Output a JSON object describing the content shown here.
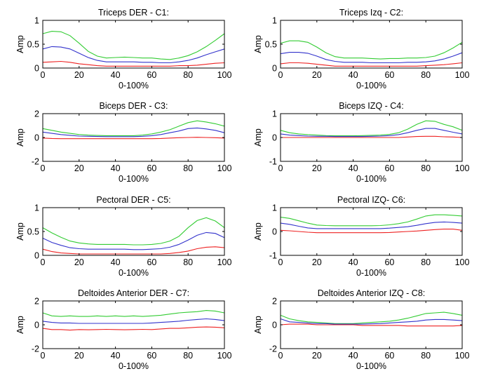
{
  "chart_data": [
    {
      "type": "line",
      "title": "Triceps DER - C1:",
      "xlabel": "0-100%",
      "ylabel": "Amp",
      "xlim": [
        0,
        100
      ],
      "ylim": [
        0,
        1
      ],
      "xticks": [
        "0",
        "20",
        "40",
        "60",
        "80",
        "100"
      ],
      "yticks": [
        "0",
        "0.5",
        "1"
      ],
      "x": [
        0,
        5,
        10,
        15,
        20,
        25,
        30,
        35,
        40,
        45,
        50,
        55,
        60,
        65,
        70,
        75,
        80,
        85,
        90,
        95,
        100
      ],
      "series": [
        {
          "color": "#33cc33",
          "values": [
            0.72,
            0.77,
            0.76,
            0.68,
            0.52,
            0.35,
            0.25,
            0.21,
            0.22,
            0.23,
            0.22,
            0.21,
            0.21,
            0.19,
            0.18,
            0.21,
            0.26,
            0.34,
            0.45,
            0.58,
            0.72
          ]
        },
        {
          "color": "#3333cc",
          "values": [
            0.4,
            0.45,
            0.44,
            0.4,
            0.31,
            0.22,
            0.16,
            0.13,
            0.13,
            0.13,
            0.13,
            0.12,
            0.12,
            0.11,
            0.11,
            0.13,
            0.16,
            0.21,
            0.28,
            0.34,
            0.4
          ]
        },
        {
          "color": "#ee2222",
          "values": [
            0.12,
            0.13,
            0.14,
            0.12,
            0.09,
            0.07,
            0.05,
            0.04,
            0.04,
            0.04,
            0.04,
            0.04,
            0.04,
            0.04,
            0.04,
            0.05,
            0.05,
            0.06,
            0.08,
            0.1,
            0.11
          ]
        }
      ]
    },
    {
      "type": "line",
      "title": "Triceps Izq - C2:",
      "xlabel": "0-100%",
      "ylabel": "Amp",
      "xlim": [
        0,
        100
      ],
      "ylim": [
        0,
        1
      ],
      "xticks": [
        "0",
        "20",
        "40",
        "60",
        "80",
        "100"
      ],
      "yticks": [
        "0",
        "0.5",
        "1"
      ],
      "x": [
        0,
        5,
        10,
        15,
        20,
        25,
        30,
        35,
        40,
        45,
        50,
        55,
        60,
        65,
        70,
        75,
        80,
        85,
        90,
        95,
        100
      ],
      "series": [
        {
          "color": "#33cc33",
          "values": [
            0.52,
            0.57,
            0.57,
            0.54,
            0.44,
            0.32,
            0.24,
            0.21,
            0.21,
            0.21,
            0.2,
            0.19,
            0.2,
            0.2,
            0.21,
            0.21,
            0.22,
            0.25,
            0.32,
            0.42,
            0.54
          ]
        },
        {
          "color": "#3333cc",
          "values": [
            0.3,
            0.33,
            0.33,
            0.31,
            0.25,
            0.18,
            0.14,
            0.12,
            0.12,
            0.12,
            0.11,
            0.11,
            0.11,
            0.11,
            0.12,
            0.12,
            0.13,
            0.15,
            0.19,
            0.25,
            0.32
          ]
        },
        {
          "color": "#ee2222",
          "values": [
            0.09,
            0.11,
            0.11,
            0.1,
            0.08,
            0.06,
            0.04,
            0.04,
            0.04,
            0.04,
            0.04,
            0.04,
            0.04,
            0.04,
            0.04,
            0.04,
            0.05,
            0.06,
            0.07,
            0.09,
            0.11
          ]
        }
      ]
    },
    {
      "type": "line",
      "title": "Biceps DER - C3:",
      "xlabel": "0-100%",
      "ylabel": "Amp",
      "xlim": [
        0,
        100
      ],
      "ylim": [
        -2,
        2
      ],
      "xticks": [
        "0",
        "20",
        "40",
        "60",
        "80",
        "100"
      ],
      "yticks": [
        "-2",
        "0",
        "2"
      ],
      "x": [
        0,
        5,
        10,
        15,
        20,
        25,
        30,
        35,
        40,
        45,
        50,
        55,
        60,
        65,
        70,
        75,
        80,
        85,
        90,
        95,
        100
      ],
      "series": [
        {
          "color": "#33cc33",
          "values": [
            0.75,
            0.6,
            0.45,
            0.35,
            0.25,
            0.2,
            0.17,
            0.15,
            0.15,
            0.15,
            0.15,
            0.2,
            0.3,
            0.45,
            0.65,
            0.95,
            1.25,
            1.4,
            1.3,
            1.15,
            0.95
          ]
        },
        {
          "color": "#3333cc",
          "values": [
            0.45,
            0.35,
            0.25,
            0.18,
            0.12,
            0.1,
            0.08,
            0.07,
            0.07,
            0.07,
            0.07,
            0.1,
            0.15,
            0.25,
            0.4,
            0.55,
            0.75,
            0.8,
            0.72,
            0.6,
            0.4
          ]
        },
        {
          "color": "#ee2222",
          "values": [
            -0.05,
            -0.08,
            -0.1,
            -0.1,
            -0.1,
            -0.1,
            -0.1,
            -0.1,
            -0.1,
            -0.1,
            -0.1,
            -0.1,
            -0.1,
            -0.08,
            -0.05,
            -0.02,
            0.0,
            0.02,
            0.0,
            -0.02,
            -0.05
          ]
        }
      ]
    },
    {
      "type": "line",
      "title": "Biceps IZQ - C4:",
      "xlabel": "0-100%",
      "ylabel": "Amp",
      "xlim": [
        0,
        100
      ],
      "ylim": [
        -1,
        1
      ],
      "xticks": [
        "0",
        "20",
        "40",
        "60",
        "80",
        "100"
      ],
      "yticks": [
        "-1",
        "0",
        "1"
      ],
      "x": [
        0,
        5,
        10,
        15,
        20,
        25,
        30,
        35,
        40,
        45,
        50,
        55,
        60,
        65,
        70,
        75,
        80,
        85,
        90,
        95,
        100
      ],
      "series": [
        {
          "color": "#33cc33",
          "values": [
            0.3,
            0.2,
            0.15,
            0.12,
            0.1,
            0.08,
            0.07,
            0.07,
            0.07,
            0.08,
            0.09,
            0.1,
            0.13,
            0.2,
            0.35,
            0.55,
            0.7,
            0.68,
            0.55,
            0.45,
            0.3
          ]
        },
        {
          "color": "#3333cc",
          "values": [
            0.15,
            0.1,
            0.08,
            0.06,
            0.05,
            0.05,
            0.04,
            0.04,
            0.04,
            0.04,
            0.05,
            0.06,
            0.08,
            0.12,
            0.2,
            0.3,
            0.38,
            0.38,
            0.3,
            0.22,
            0.15
          ]
        },
        {
          "color": "#ee2222",
          "values": [
            0.0,
            0.0,
            0.0,
            0.0,
            0.0,
            0.0,
            0.0,
            0.0,
            0.0,
            0.0,
            0.0,
            0.0,
            0.0,
            0.0,
            0.02,
            0.04,
            0.05,
            0.05,
            0.03,
            0.02,
            0.0
          ]
        }
      ]
    },
    {
      "type": "line",
      "title": "Pectoral DER - C5:",
      "xlabel": "0-100%",
      "ylabel": "Amp",
      "xlim": [
        0,
        100
      ],
      "ylim": [
        0,
        1
      ],
      "xticks": [
        "0",
        "20",
        "40",
        "60",
        "80",
        "100"
      ],
      "yticks": [
        "0",
        "0.5",
        "1"
      ],
      "x": [
        0,
        5,
        10,
        15,
        20,
        25,
        30,
        35,
        40,
        45,
        50,
        55,
        60,
        65,
        70,
        75,
        80,
        85,
        90,
        95,
        100
      ],
      "series": [
        {
          "color": "#33cc33",
          "values": [
            0.58,
            0.47,
            0.38,
            0.3,
            0.26,
            0.24,
            0.23,
            0.23,
            0.23,
            0.23,
            0.22,
            0.22,
            0.23,
            0.25,
            0.3,
            0.4,
            0.58,
            0.73,
            0.79,
            0.72,
            0.58
          ]
        },
        {
          "color": "#3333cc",
          "values": [
            0.36,
            0.27,
            0.21,
            0.16,
            0.14,
            0.13,
            0.13,
            0.13,
            0.13,
            0.13,
            0.12,
            0.12,
            0.13,
            0.14,
            0.17,
            0.23,
            0.32,
            0.42,
            0.48,
            0.46,
            0.37
          ]
        },
        {
          "color": "#ee2222",
          "values": [
            0.13,
            0.08,
            0.05,
            0.04,
            0.03,
            0.03,
            0.03,
            0.03,
            0.03,
            0.03,
            0.03,
            0.03,
            0.03,
            0.03,
            0.04,
            0.06,
            0.09,
            0.14,
            0.17,
            0.18,
            0.16
          ]
        }
      ]
    },
    {
      "type": "line",
      "title": "Pectoral IZQ- C6:",
      "xlabel": "0-100%",
      "ylabel": "Amp",
      "xlim": [
        0,
        100
      ],
      "ylim": [
        -1,
        1
      ],
      "xticks": [
        "0",
        "20",
        "40",
        "60",
        "80",
        "100"
      ],
      "yticks": [
        "-1",
        "0",
        "1"
      ],
      "x": [
        0,
        5,
        10,
        15,
        20,
        25,
        30,
        35,
        40,
        45,
        50,
        55,
        60,
        65,
        70,
        75,
        80,
        85,
        90,
        95,
        100
      ],
      "series": [
        {
          "color": "#33cc33",
          "values": [
            0.6,
            0.55,
            0.45,
            0.35,
            0.27,
            0.25,
            0.24,
            0.24,
            0.24,
            0.24,
            0.24,
            0.25,
            0.28,
            0.33,
            0.4,
            0.52,
            0.65,
            0.7,
            0.7,
            0.68,
            0.65
          ]
        },
        {
          "color": "#3333cc",
          "values": [
            0.35,
            0.3,
            0.22,
            0.15,
            0.12,
            0.12,
            0.12,
            0.12,
            0.12,
            0.12,
            0.12,
            0.12,
            0.14,
            0.17,
            0.2,
            0.26,
            0.33,
            0.38,
            0.4,
            0.38,
            0.35
          ]
        },
        {
          "color": "#ee2222",
          "values": [
            0.05,
            0.03,
            0.0,
            -0.03,
            -0.05,
            -0.05,
            -0.05,
            -0.05,
            -0.05,
            -0.05,
            -0.05,
            -0.05,
            -0.04,
            -0.02,
            0.0,
            0.02,
            0.05,
            0.08,
            0.1,
            0.1,
            0.05
          ]
        }
      ]
    },
    {
      "type": "line",
      "title": "Deltoides Anterior DER - C7:",
      "xlabel": "0-100%",
      "ylabel": "Amp",
      "xlim": [
        0,
        100
      ],
      "ylim": [
        -2,
        2
      ],
      "xticks": [
        "0",
        "20",
        "40",
        "60",
        "80",
        "100"
      ],
      "yticks": [
        "-2",
        "0",
        "2"
      ],
      "x": [
        0,
        5,
        10,
        15,
        20,
        25,
        30,
        35,
        40,
        45,
        50,
        55,
        60,
        65,
        70,
        75,
        80,
        85,
        90,
        95,
        100
      ],
      "series": [
        {
          "color": "#33cc33",
          "values": [
            1.0,
            0.75,
            0.7,
            0.75,
            0.7,
            0.7,
            0.75,
            0.7,
            0.75,
            0.7,
            0.75,
            0.7,
            0.75,
            0.8,
            0.9,
            1.0,
            1.05,
            1.1,
            1.2,
            1.15,
            1.0
          ]
        },
        {
          "color": "#3333cc",
          "values": [
            0.3,
            0.2,
            0.15,
            0.15,
            0.12,
            0.12,
            0.12,
            0.12,
            0.12,
            0.12,
            0.12,
            0.12,
            0.15,
            0.2,
            0.25,
            0.3,
            0.38,
            0.45,
            0.5,
            0.45,
            0.35
          ]
        },
        {
          "color": "#ee2222",
          "values": [
            -0.3,
            -0.4,
            -0.4,
            -0.45,
            -0.4,
            -0.42,
            -0.4,
            -0.38,
            -0.4,
            -0.42,
            -0.4,
            -0.38,
            -0.4,
            -0.35,
            -0.3,
            -0.3,
            -0.25,
            -0.2,
            -0.18,
            -0.2,
            -0.25
          ]
        }
      ]
    },
    {
      "type": "line",
      "title": "Deltoides Anterior IZQ - C8:",
      "xlabel": "0-100%",
      "ylabel": "Amp",
      "xlim": [
        0,
        100
      ],
      "ylim": [
        -2,
        2
      ],
      "xticks": [
        "0",
        "20",
        "40",
        "60",
        "80",
        "100"
      ],
      "yticks": [
        "-2",
        "0",
        "2"
      ],
      "x": [
        0,
        5,
        10,
        15,
        20,
        25,
        30,
        35,
        40,
        45,
        50,
        55,
        60,
        65,
        70,
        75,
        80,
        85,
        90,
        95,
        100
      ],
      "series": [
        {
          "color": "#33cc33",
          "values": [
            0.8,
            0.5,
            0.35,
            0.25,
            0.2,
            0.15,
            0.1,
            0.1,
            0.1,
            0.15,
            0.2,
            0.25,
            0.3,
            0.4,
            0.55,
            0.75,
            0.95,
            1.0,
            1.05,
            0.95,
            0.8
          ]
        },
        {
          "color": "#3333cc",
          "values": [
            0.5,
            0.25,
            0.2,
            0.15,
            0.1,
            0.1,
            0.05,
            0.05,
            0.05,
            0.05,
            0.08,
            0.1,
            0.15,
            0.2,
            0.25,
            0.3,
            0.4,
            0.45,
            0.45,
            0.4,
            0.35
          ]
        },
        {
          "color": "#ee2222",
          "values": [
            0.0,
            0.05,
            0.05,
            0.05,
            0.0,
            0.0,
            0.0,
            0.0,
            0.0,
            -0.05,
            -0.05,
            -0.05,
            -0.05,
            -0.05,
            -0.1,
            -0.1,
            -0.1,
            -0.1,
            -0.1,
            -0.1,
            -0.05
          ]
        }
      ]
    }
  ]
}
